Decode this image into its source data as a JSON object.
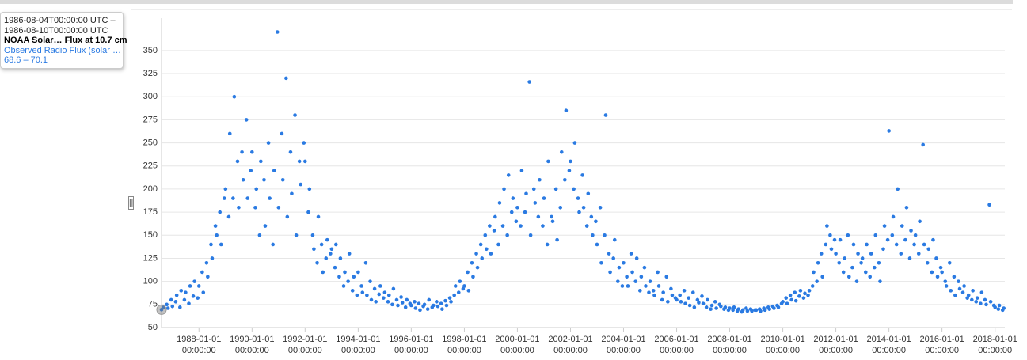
{
  "tooltip": {
    "start": "1986-08-04T00:00:00 UTC –",
    "end": "1986-08-10T00:00:00 UTC",
    "dataset": "NOAA Solar… Flux at 10.7 cm",
    "series": "Observed Radio Flux (solar …",
    "range": "68.6 – 70.1"
  },
  "chart_data": {
    "type": "scatter",
    "color": "#2a7ae2",
    "grid": true,
    "xlim": [
      "1986-08-04",
      "2018-05-15"
    ],
    "ylim": [
      50,
      385
    ],
    "yticks": [
      50,
      75,
      100,
      125,
      150,
      175,
      200,
      225,
      250,
      275,
      300,
      325,
      350
    ],
    "xticks": [
      {
        "value": "1988-01-01",
        "label": "1988-01-01 00:00:00"
      },
      {
        "value": "1990-01-01",
        "label": "1990-01-01 00:00:00"
      },
      {
        "value": "1992-01-01",
        "label": "1992-01-01 00:00:00"
      },
      {
        "value": "1994-01-01",
        "label": "1994-01-01 00:00:00"
      },
      {
        "value": "1996-01-01",
        "label": "1996-01-01 00:00:00"
      },
      {
        "value": "1998-01-01",
        "label": "1998-01-01 00:00:00"
      },
      {
        "value": "2000-01-01",
        "label": "2000-01-01 00:00:00"
      },
      {
        "value": "2002-01-01",
        "label": "2002-01-01 00:00:00"
      },
      {
        "value": "2004-01-01",
        "label": "2004-01-01 00:00:00"
      },
      {
        "value": "2006-01-01",
        "label": "2006-01-01 00:00:00"
      },
      {
        "value": "2008-01-01",
        "label": "2008-01-01 00:00:00"
      },
      {
        "value": "2010-01-01",
        "label": "2010-01-01 00:00:00"
      },
      {
        "value": "2012-01-01",
        "label": "2012-01-01 00:00:00"
      },
      {
        "value": "2014-01-01",
        "label": "2014-01-01 00:00:00"
      },
      {
        "value": "2016-01-01",
        "label": "2016-01-01 00:00:00"
      },
      {
        "value": "2018-01-01",
        "label": "2018-01-01 00:00:00"
      }
    ],
    "x": [
      "1986-08-04",
      "1986-09-01",
      "1986-10-15",
      "1986-11-01",
      "1986-12-15",
      "1987-01-01",
      "1987-02-15",
      "1987-03-01",
      "1987-04-15",
      "1987-05-01",
      "1987-06-15",
      "1987-07-01",
      "1987-08-15",
      "1987-09-01",
      "1987-10-15",
      "1987-11-01",
      "1987-12-15",
      "1988-01-01",
      "1988-02-15",
      "1988-03-01",
      "1988-04-15",
      "1988-05-01",
      "1988-06-15",
      "1988-07-01",
      "1988-08-15",
      "1988-09-01",
      "1988-10-15",
      "1988-11-01",
      "1988-12-15",
      "1989-01-01",
      "1989-02-15",
      "1989-03-01",
      "1989-04-15",
      "1989-05-01",
      "1989-06-15",
      "1989-07-01",
      "1989-08-15",
      "1989-09-01",
      "1989-10-15",
      "1989-11-01",
      "1989-12-15",
      "1990-01-01",
      "1990-02-15",
      "1990-03-01",
      "1990-04-15",
      "1990-05-01",
      "1990-06-15",
      "1990-07-01",
      "1990-08-15",
      "1990-09-01",
      "1990-10-15",
      "1990-11-01",
      "1990-12-15",
      "1991-01-01",
      "1991-02-15",
      "1991-03-01",
      "1991-04-15",
      "1991-05-01",
      "1991-06-15",
      "1991-07-01",
      "1991-08-15",
      "1991-09-01",
      "1991-10-15",
      "1991-11-01",
      "1991-12-15",
      "1992-01-01",
      "1992-02-15",
      "1992-03-01",
      "1992-04-15",
      "1992-05-01",
      "1992-06-15",
      "1992-07-01",
      "1992-08-15",
      "1992-09-01",
      "1992-10-15",
      "1992-11-01",
      "1992-12-15",
      "1993-01-01",
      "1993-02-15",
      "1993-03-01",
      "1993-04-15",
      "1993-05-01",
      "1993-06-15",
      "1993-07-01",
      "1993-08-15",
      "1993-09-01",
      "1993-10-15",
      "1993-11-01",
      "1993-12-15",
      "1994-01-01",
      "1994-02-15",
      "1994-03-01",
      "1994-04-15",
      "1994-05-01",
      "1994-06-15",
      "1994-07-01",
      "1994-08-15",
      "1994-09-01",
      "1994-10-15",
      "1994-11-01",
      "1994-12-15",
      "1995-01-01",
      "1995-02-15",
      "1995-03-01",
      "1995-04-15",
      "1995-05-01",
      "1995-06-15",
      "1995-07-01",
      "1995-08-15",
      "1995-09-01",
      "1995-10-15",
      "1995-11-01",
      "1995-12-15",
      "1996-01-01",
      "1996-02-15",
      "1996-03-01",
      "1996-04-15",
      "1996-05-01",
      "1996-06-15",
      "1996-07-01",
      "1996-08-15",
      "1996-09-01",
      "1996-10-15",
      "1996-11-01",
      "1996-12-15",
      "1997-01-01",
      "1997-02-15",
      "1997-03-01",
      "1997-04-15",
      "1997-05-01",
      "1997-06-15",
      "1997-07-01",
      "1997-08-15",
      "1997-09-01",
      "1997-10-15",
      "1997-11-01",
      "1997-12-15",
      "1998-01-01",
      "1998-02-15",
      "1998-03-01",
      "1998-04-15",
      "1998-05-01",
      "1998-06-15",
      "1998-07-01",
      "1998-08-15",
      "1998-09-01",
      "1998-10-15",
      "1998-11-01",
      "1998-12-15",
      "1999-01-01",
      "1999-02-15",
      "1999-03-01",
      "1999-04-15",
      "1999-05-01",
      "1999-06-15",
      "1999-07-01",
      "1999-08-15",
      "1999-09-01",
      "1999-10-15",
      "1999-11-01",
      "1999-12-15",
      "2000-01-01",
      "2000-02-15",
      "2000-03-01",
      "2000-04-15",
      "2000-05-01",
      "2000-06-15",
      "2000-07-01",
      "2000-08-15",
      "2000-09-01",
      "2000-10-15",
      "2000-11-01",
      "2000-12-15",
      "2001-01-01",
      "2001-02-15",
      "2001-03-01",
      "2001-04-15",
      "2001-05-01",
      "2001-06-15",
      "2001-07-01",
      "2001-08-15",
      "2001-09-01",
      "2001-10-15",
      "2001-11-01",
      "2001-12-15",
      "2002-01-01",
      "2002-02-15",
      "2002-03-01",
      "2002-04-15",
      "2002-05-01",
      "2002-06-15",
      "2002-07-01",
      "2002-08-15",
      "2002-09-01",
      "2002-10-15",
      "2002-11-01",
      "2002-12-15",
      "2003-01-01",
      "2003-02-15",
      "2003-03-01",
      "2003-04-15",
      "2003-05-01",
      "2003-06-15",
      "2003-07-01",
      "2003-08-15",
      "2003-09-01",
      "2003-10-15",
      "2003-11-01",
      "2003-12-15",
      "2004-01-01",
      "2004-02-15",
      "2004-03-01",
      "2004-04-15",
      "2004-05-01",
      "2004-06-15",
      "2004-07-01",
      "2004-08-15",
      "2004-09-01",
      "2004-10-15",
      "2004-11-01",
      "2004-12-15",
      "2005-01-01",
      "2005-02-15",
      "2005-03-01",
      "2005-04-15",
      "2005-05-01",
      "2005-06-15",
      "2005-07-01",
      "2005-08-15",
      "2005-09-01",
      "2005-10-15",
      "2005-11-01",
      "2005-12-15",
      "2006-01-01",
      "2006-02-15",
      "2006-03-01",
      "2006-04-15",
      "2006-05-01",
      "2006-06-15",
      "2006-07-01",
      "2006-08-15",
      "2006-09-01",
      "2006-10-15",
      "2006-11-01",
      "2006-12-15",
      "2007-01-01",
      "2007-02-15",
      "2007-03-01",
      "2007-04-15",
      "2007-05-01",
      "2007-06-15",
      "2007-07-01",
      "2007-08-15",
      "2007-09-01",
      "2007-10-15",
      "2007-11-01",
      "2007-12-15",
      "2008-01-01",
      "2008-02-15",
      "2008-03-01",
      "2008-04-15",
      "2008-05-01",
      "2008-06-15",
      "2008-07-01",
      "2008-08-15",
      "2008-09-01",
      "2008-10-15",
      "2008-11-01",
      "2008-12-15",
      "2009-01-01",
      "2009-02-15",
      "2009-03-01",
      "2009-04-15",
      "2009-05-01",
      "2009-06-15",
      "2009-07-01",
      "2009-08-15",
      "2009-09-01",
      "2009-10-15",
      "2009-11-01",
      "2009-12-15",
      "2010-01-01",
      "2010-02-15",
      "2010-03-01",
      "2010-04-15",
      "2010-05-01",
      "2010-06-15",
      "2010-07-01",
      "2010-08-15",
      "2010-09-01",
      "2010-10-15",
      "2010-11-01",
      "2010-12-15",
      "2011-01-01",
      "2011-02-15",
      "2011-03-01",
      "2011-04-15",
      "2011-05-01",
      "2011-06-15",
      "2011-07-01",
      "2011-08-15",
      "2011-09-01",
      "2011-10-15",
      "2011-11-01",
      "2011-12-15",
      "2012-01-01",
      "2012-02-15",
      "2012-03-01",
      "2012-04-15",
      "2012-05-01",
      "2012-06-15",
      "2012-07-01",
      "2012-08-15",
      "2012-09-01",
      "2012-10-15",
      "2012-11-01",
      "2012-12-15",
      "2013-01-01",
      "2013-02-15",
      "2013-03-01",
      "2013-04-15",
      "2013-05-01",
      "2013-06-15",
      "2013-07-01",
      "2013-08-15",
      "2013-09-01",
      "2013-10-15",
      "2013-11-01",
      "2013-12-15",
      "2014-01-01",
      "2014-02-15",
      "2014-03-01",
      "2014-04-15",
      "2014-05-01",
      "2014-06-15",
      "2014-07-01",
      "2014-08-15",
      "2014-09-01",
      "2014-10-15",
      "2014-11-01",
      "2014-12-15",
      "2015-01-01",
      "2015-02-15",
      "2015-03-01",
      "2015-04-15",
      "2015-05-01",
      "2015-06-15",
      "2015-07-01",
      "2015-08-15",
      "2015-09-01",
      "2015-10-15",
      "2015-11-01",
      "2015-12-15",
      "2016-01-01",
      "2016-02-15",
      "2016-03-01",
      "2016-04-15",
      "2016-05-01",
      "2016-06-15",
      "2016-07-01",
      "2016-08-15",
      "2016-09-01",
      "2016-10-15",
      "2016-11-01",
      "2016-12-15",
      "2017-01-01",
      "2017-02-15",
      "2017-03-01",
      "2017-04-15",
      "2017-05-01",
      "2017-06-15",
      "2017-07-01",
      "2017-08-15",
      "2017-09-01",
      "2017-10-15",
      "2017-11-01",
      "2017-12-15",
      "2018-01-01",
      "2018-02-15",
      "2018-03-01",
      "2018-04-15",
      "2018-05-01"
    ],
    "values": [
      69.4,
      72,
      75,
      71,
      80,
      73,
      78,
      85,
      72,
      90,
      80,
      88,
      76,
      95,
      84,
      100,
      82,
      95,
      110,
      88,
      120,
      105,
      140,
      125,
      160,
      150,
      175,
      140,
      190,
      200,
      170,
      260,
      190,
      300,
      230,
      180,
      240,
      210,
      275,
      190,
      220,
      240,
      180,
      200,
      150,
      230,
      210,
      160,
      250,
      190,
      140,
      220,
      370,
      180,
      260,
      210,
      320,
      170,
      240,
      195,
      280,
      150,
      230,
      205,
      250,
      230,
      175,
      200,
      150,
      135,
      120,
      170,
      140,
      110,
      125,
      145,
      130,
      135,
      115,
      140,
      105,
      125,
      95,
      110,
      100,
      130,
      90,
      105,
      85,
      110,
      95,
      88,
      120,
      85,
      100,
      80,
      92,
      78,
      86,
      95,
      82,
      88,
      78,
      85,
      75,
      92,
      80,
      74,
      83,
      77,
      72,
      80,
      76,
      74,
      78,
      71,
      76,
      69,
      73,
      75,
      70,
      80,
      72,
      74,
      78,
      73,
      76,
      70,
      79,
      74,
      82,
      78,
      85,
      95,
      88,
      100,
      92,
      95,
      110,
      90,
      120,
      105,
      130,
      115,
      140,
      125,
      150,
      135,
      160,
      130,
      155,
      170,
      140,
      185,
      160,
      200,
      150,
      215,
      175,
      190,
      165,
      180,
      160,
      220,
      175,
      195,
      316,
      150,
      200,
      185,
      170,
      210,
      160,
      190,
      140,
      230,
      170,
      165,
      200,
      145,
      180,
      240,
      210,
      285,
      220,
      230,
      200,
      250,
      190,
      175,
      215,
      180,
      160,
      195,
      170,
      150,
      165,
      140,
      180,
      120,
      150,
      280,
      130,
      110,
      125,
      145,
      100,
      115,
      95,
      120,
      105,
      95,
      130,
      110,
      100,
      125,
      90,
      105,
      115,
      95,
      88,
      100,
      90,
      85,
      110,
      95,
      80,
      88,
      105,
      78,
      92,
      85,
      82,
      80,
      85,
      78,
      90,
      76,
      82,
      74,
      88,
      72,
      80,
      77,
      84,
      76,
      72,
      80,
      70,
      74,
      78,
      71,
      75,
      73,
      70,
      72,
      69,
      71,
      69,
      72,
      68,
      70,
      67,
      69,
      71,
      68,
      70,
      68,
      69,
      69,
      70,
      68,
      71,
      69,
      72,
      70,
      73,
      71,
      74,
      72,
      76,
      78,
      82,
      76,
      85,
      80,
      88,
      79,
      84,
      90,
      82,
      87,
      85,
      90,
      95,
      110,
      100,
      120,
      130,
      105,
      140,
      160,
      150,
      135,
      145,
      130,
      120,
      145,
      110,
      125,
      150,
      105,
      115,
      140,
      100,
      130,
      120,
      125,
      110,
      140,
      105,
      130,
      115,
      150,
      120,
      100,
      135,
      160,
      145,
      263,
      150,
      170,
      140,
      200,
      130,
      160,
      145,
      180,
      125,
      155,
      140,
      150,
      130,
      165,
      248,
      140,
      120,
      135,
      110,
      145,
      125,
      105,
      115,
      110,
      100,
      95,
      120,
      90,
      105,
      85,
      100,
      92,
      88,
      95,
      82,
      85,
      80,
      90,
      78,
      82,
      76,
      88,
      80,
      75,
      183,
      78,
      74,
      72,
      70,
      74,
      69,
      71
    ]
  }
}
